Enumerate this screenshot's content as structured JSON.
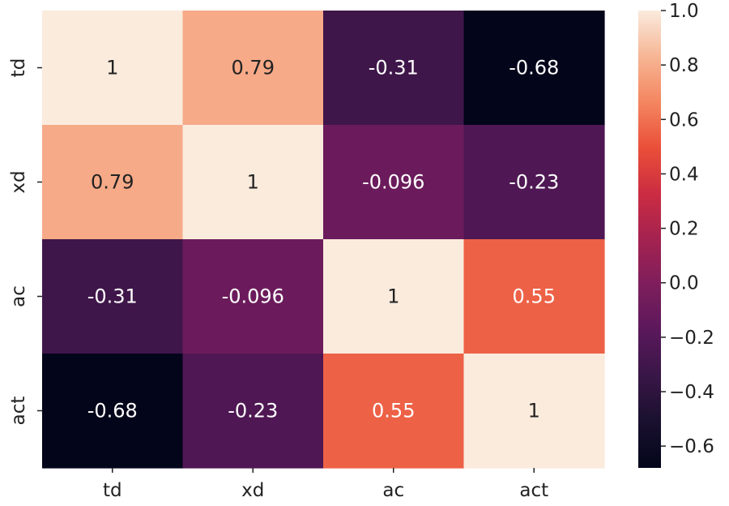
{
  "chart_data": {
    "type": "heatmap",
    "title": "",
    "xlabel": "",
    "ylabel": "",
    "row_labels": [
      "td",
      "xd",
      "ac",
      "act"
    ],
    "col_labels": [
      "td",
      "xd",
      "ac",
      "act"
    ],
    "values": [
      [
        1,
        0.79,
        -0.31,
        -0.68
      ],
      [
        0.79,
        1,
        -0.096,
        -0.23
      ],
      [
        -0.31,
        -0.096,
        1,
        0.55
      ],
      [
        -0.68,
        -0.23,
        0.55,
        1
      ]
    ],
    "annotations": [
      [
        "1",
        "0.79",
        "-0.31",
        "-0.68"
      ],
      [
        "0.79",
        "1",
        "-0.096",
        "-0.23"
      ],
      [
        "-0.31",
        "-0.096",
        "1",
        "0.55"
      ],
      [
        "-0.68",
        "-0.23",
        "0.55",
        "1"
      ]
    ],
    "colormap": "rocket",
    "colorbar": {
      "vmin": -0.68,
      "vmax": 1.0,
      "ticks": [
        1.0,
        0.8,
        0.6,
        0.4,
        0.2,
        0.0,
        -0.2,
        -0.4,
        -0.6
      ],
      "tick_labels": [
        "1.0",
        "0.8",
        "0.6",
        "0.4",
        "0.2",
        "0.0",
        "−0.2",
        "−0.4",
        "−0.6"
      ]
    },
    "colors": {
      "text_dark": "#222222",
      "text_light": "#ffffff"
    }
  }
}
